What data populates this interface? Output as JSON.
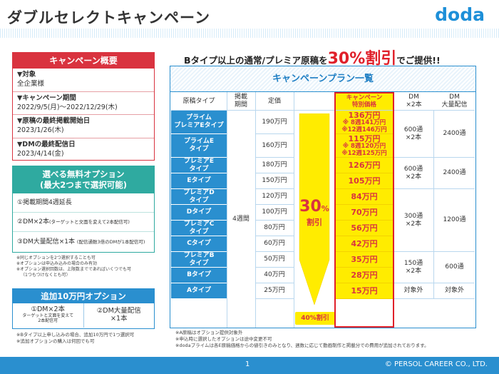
{
  "title": "ダブルセレクトキャンペーン",
  "logo": "doda",
  "overview": {
    "heading": "キャンペーン概要",
    "items": [
      {
        "key": "▼対象",
        "value": "全企業様"
      },
      {
        "key": "▼キャンペーン期間",
        "value": "2022/9/5(月)～2022/12/29(木)"
      },
      {
        "key": "▼原稿の最終掲載開始日",
        "value": "2023/1/26(木)"
      },
      {
        "key": "▼DMの最終配信日",
        "value": "2023/4/14(金)"
      }
    ]
  },
  "free_options": {
    "heading1": "選べる無料オプション",
    "heading2": "(最大2つまで選択可能)",
    "items": [
      {
        "text": "①掲載期間4週延長",
        "note": ""
      },
      {
        "text": "②DM×2本",
        "note": "(ターゲットと文面を変えて2本配信可)"
      },
      {
        "text": "③DM大量配信×1本",
        "note": "(配信通数3倍のDMが1本配信可)"
      }
    ]
  },
  "notes_free": [
    "※同じオプションを2つ選択することも可",
    "※オプションは申込み込みの場合のみ有効",
    "※オプション選択回数は、上限数までであればいくつでも可",
    "（1つもつけなくとも可）"
  ],
  "add_option": {
    "heading": "追加10万円オプション",
    "left_main": "①DM×2本",
    "left_note1": "ターゲットと文面を変えて",
    "left_note2": "2本配信可",
    "right_main1": "②DM大量配信",
    "right_main2": "×1本"
  },
  "notes_add": [
    "※Bタイプ以上申し込みの場合、追加10万円で1つ選択可",
    "※追加オプションの購入は何回でも可"
  ],
  "headline": {
    "pre": "Bタイプ以上の通常/プレミア原稿を",
    "big": "30%割引",
    "post": "でご提供!!"
  },
  "plan": {
    "heading": "キャンペーンプラン一覧",
    "headers": {
      "type": "原稿タイプ",
      "period1": "掲載",
      "period2": "期間",
      "price": "定価",
      "camp1": "キャンペーン",
      "camp2": "特別価格",
      "dm1": "DM",
      "dm2": "×2本",
      "bulk1": "DM",
      "bulk2": "大量配信"
    },
    "period_value": "4週間",
    "discount_big": "30",
    "discount_pct": "%",
    "discount_word": "割引",
    "discount_a": "40%割引",
    "rows": [
      {
        "type1": "プライム",
        "type2": "プレミアEタイプ",
        "price": "190万円",
        "camp": "136万円",
        "sub1": "※ 8週141万円",
        "sub2": "※12週146万円"
      },
      {
        "type1": "プライムE",
        "type2": "タイプ",
        "price": "160万円",
        "camp": "115万円",
        "sub1": "※ 8週120万円",
        "sub2": "※12週125万円"
      },
      {
        "type1": "プレミアE",
        "type2": "タイプ",
        "price": "180万円",
        "camp": "126万円",
        "sub1": "",
        "sub2": ""
      },
      {
        "type1": "Eタイプ",
        "type2": "",
        "price": "150万円",
        "camp": "105万円",
        "sub1": "",
        "sub2": ""
      },
      {
        "type1": "プレミアD",
        "type2": "タイプ",
        "price": "120万円",
        "camp": "84万円",
        "sub1": "",
        "sub2": ""
      },
      {
        "type1": "Dタイプ",
        "type2": "",
        "price": "100万円",
        "camp": "70万円",
        "sub1": "",
        "sub2": ""
      },
      {
        "type1": "プレミアC",
        "type2": "タイプ",
        "price": "80万円",
        "camp": "56万円",
        "sub1": "",
        "sub2": ""
      },
      {
        "type1": "Cタイプ",
        "type2": "",
        "price": "60万円",
        "camp": "42万円",
        "sub1": "",
        "sub2": ""
      },
      {
        "type1": "プレミアB",
        "type2": "タイプ",
        "price": "50万円",
        "camp": "35万円",
        "sub1": "",
        "sub2": ""
      },
      {
        "type1": "Bタイプ",
        "type2": "",
        "price": "40万円",
        "camp": "28万円",
        "sub1": "",
        "sub2": ""
      },
      {
        "type1": "Aタイプ",
        "type2": "",
        "price": "25万円",
        "camp": "15万円",
        "sub1": "",
        "sub2": ""
      }
    ],
    "dm_groups": [
      {
        "dm1": "600通",
        "dm2": "×2本",
        "bulk": "2400通"
      },
      {
        "dm1": "600通",
        "dm2": "×2本",
        "bulk": "2400通"
      },
      {
        "dm1": "300通",
        "dm2": "×2本",
        "bulk": "1200通"
      },
      {
        "dm1": "150通",
        "dm2": "×2本",
        "bulk": "600通"
      },
      {
        "dm1": "対象外",
        "dm2": "",
        "bulk": "対象外"
      }
    ]
  },
  "notes_plan": [
    "※A原稿はオプション提供対象外",
    "※申込時に選択したオプションは途中変更不可",
    "※dodaプライムは各E原稿価格からの値引きのみとなり、週数に応じて動画制作と掲載分での費用が追加されております。"
  ],
  "footer": {
    "page": "1",
    "copyright": "© PERSOL CAREER CO., LTD."
  },
  "colors": {
    "red": "#d9333f",
    "teal": "#2faaa0",
    "blue": "#2a8fcf",
    "yellow": "#ffec00"
  }
}
